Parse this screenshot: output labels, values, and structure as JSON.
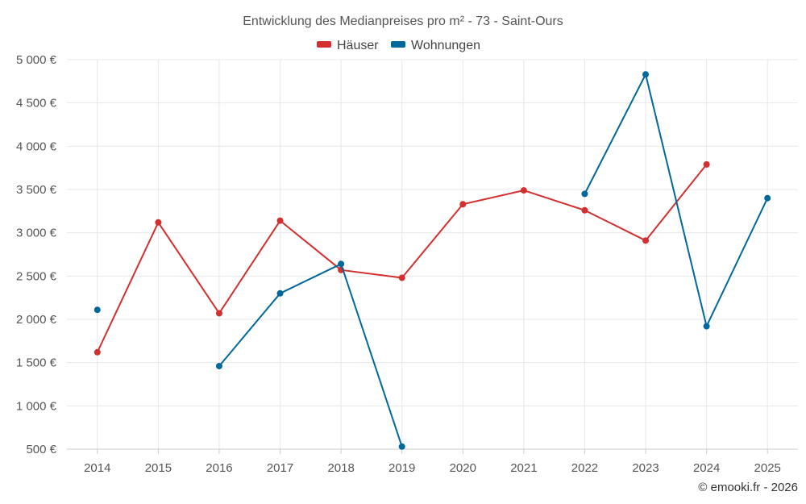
{
  "chart_data": {
    "type": "line",
    "title": "Entwicklung des Medianpreises pro m² - 73 - Saint-Ours",
    "categories": [
      "2014",
      "2015",
      "2016",
      "2017",
      "2018",
      "2019",
      "2020",
      "2021",
      "2022",
      "2023",
      "2024",
      "2025"
    ],
    "series": [
      {
        "name": "Häuser",
        "color": "#d32f2f",
        "values": [
          1620,
          3120,
          2070,
          3140,
          2570,
          2480,
          3330,
          3490,
          3260,
          2910,
          3790,
          null
        ]
      },
      {
        "name": "Wohnungen",
        "color": "#01689b",
        "values": [
          2110,
          null,
          1460,
          2300,
          2640,
          530,
          null,
          null,
          3450,
          4830,
          1920,
          3400
        ]
      }
    ],
    "ylim": [
      500,
      5000
    ],
    "yticks": [
      500,
      1000,
      1500,
      2000,
      2500,
      3000,
      3500,
      4000,
      4500,
      5000
    ],
    "ytick_labels": [
      "500 €",
      "1 000 €",
      "1 500 €",
      "2 000 €",
      "2 500 €",
      "3 000 €",
      "3 500 €",
      "4 000 €",
      "4 500 €",
      "5 000 €"
    ],
    "xlabel": "",
    "ylabel": "",
    "grid": true,
    "legend_position": "top-center"
  },
  "credit": "© emooki.fr - 2026"
}
